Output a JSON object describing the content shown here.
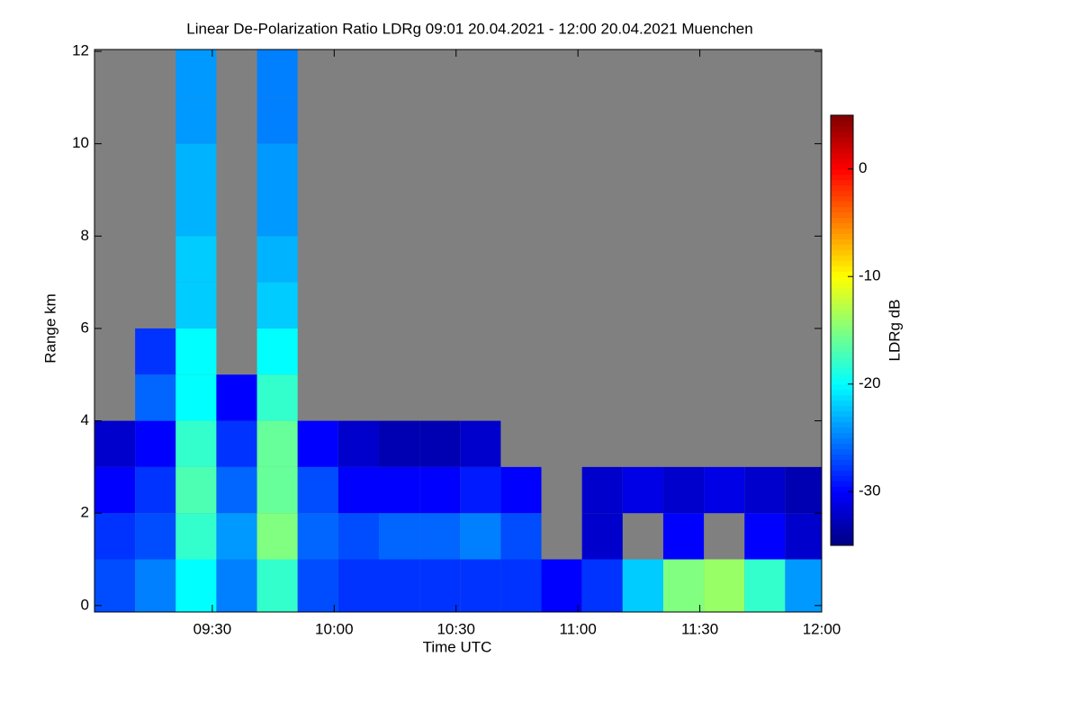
{
  "chart_data": {
    "type": "heatmap",
    "title": "Linear De-Polarization Ratio LDRg   09:01 20.04.2021 - 12:00 20.04.2021 Muenchen",
    "x_label": "Time UTC",
    "y_label": "Range km",
    "colorbar_label": "LDRg dB",
    "colormap": "jet",
    "missing_color": "#808080",
    "x": [
      "09:06",
      "09:16",
      "09:26",
      "09:36",
      "09:46",
      "09:56",
      "10:06",
      "10:16",
      "10:26",
      "10:36",
      "10:46",
      "10:56",
      "11:06",
      "11:16",
      "11:26",
      "11:36",
      "11:46",
      "11:56"
    ],
    "y": [
      0.5,
      1.5,
      2.5,
      3.5,
      4.5,
      5.5,
      6.5,
      7.5,
      8.5,
      9.5,
      10.5,
      11.5
    ],
    "values": [
      [
        -27,
        -25,
        -20,
        -25,
        -18,
        -27,
        -28,
        -28,
        -28,
        -28,
        -28,
        -30,
        -28,
        -22,
        -15,
        -14,
        -18,
        -24
      ],
      [
        -28,
        -27,
        -18,
        -24,
        -15,
        -26,
        -27,
        -26,
        -26,
        -25,
        -27,
        null,
        -32,
        null,
        -30,
        null,
        -30,
        -32
      ],
      [
        -30,
        -28,
        -17,
        -26,
        -16,
        -27,
        -30,
        -30,
        -30,
        -29,
        -30,
        null,
        -32,
        -31,
        -32,
        -31,
        -32,
        -33
      ],
      [
        -32,
        -30,
        -18,
        -28,
        -16,
        -30,
        -32,
        -33,
        -33,
        -32,
        null,
        null,
        null,
        null,
        null,
        null,
        null,
        null
      ],
      [
        null,
        -26,
        -20,
        -30,
        -18,
        null,
        null,
        null,
        null,
        null,
        null,
        null,
        null,
        null,
        null,
        null,
        null,
        null
      ],
      [
        null,
        -28,
        -20,
        null,
        -20,
        null,
        null,
        null,
        null,
        null,
        null,
        null,
        null,
        null,
        null,
        null,
        null,
        null
      ],
      [
        null,
        null,
        -22,
        null,
        -22,
        null,
        null,
        null,
        null,
        null,
        null,
        null,
        null,
        null,
        null,
        null,
        null,
        null
      ],
      [
        null,
        null,
        -22,
        null,
        -23,
        null,
        null,
        null,
        null,
        null,
        null,
        null,
        null,
        null,
        null,
        null,
        null,
        null
      ],
      [
        null,
        null,
        -23,
        null,
        -24,
        null,
        null,
        null,
        null,
        null,
        null,
        null,
        null,
        null,
        null,
        null,
        null,
        null
      ],
      [
        null,
        null,
        -23,
        null,
        -24,
        null,
        null,
        null,
        null,
        null,
        null,
        null,
        null,
        null,
        null,
        null,
        null,
        null
      ],
      [
        null,
        null,
        -24,
        null,
        -25,
        null,
        null,
        null,
        null,
        null,
        null,
        null,
        null,
        null,
        null,
        null,
        null,
        null
      ],
      [
        null,
        null,
        -24,
        null,
        -25,
        null,
        null,
        null,
        null,
        null,
        null,
        null,
        null,
        null,
        null,
        null,
        null,
        null
      ]
    ],
    "xlim": [
      "09:01",
      "12:00"
    ],
    "xticks": [
      "09:30",
      "10:00",
      "10:30",
      "11:00",
      "11:30",
      "12:00"
    ],
    "ylim": [
      -0.14,
      12.04
    ],
    "yticks": [
      0,
      2,
      4,
      6,
      8,
      10,
      12
    ],
    "clim": [
      -35,
      5
    ],
    "cticks": [
      0,
      -10,
      -20,
      -30
    ]
  }
}
